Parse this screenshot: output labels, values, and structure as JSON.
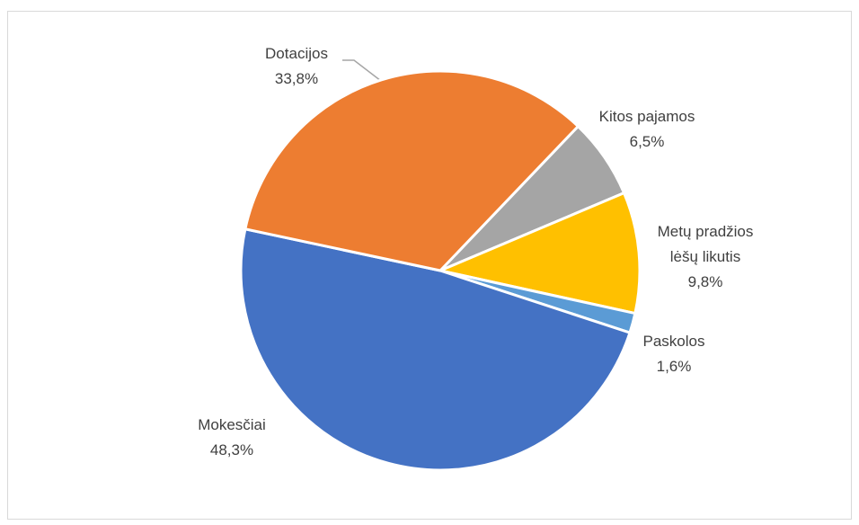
{
  "chart_data": {
    "type": "pie",
    "categories": [
      "Kitos pajamos",
      "Metų pradžios lėšų likutis",
      "Paskolos",
      "Mokesčiai",
      "Dotacijos"
    ],
    "values": [
      6.5,
      9.8,
      1.6,
      48.3,
      33.8
    ],
    "value_labels": [
      "6,5%",
      "9,8%",
      "1,6%",
      "48,3%",
      "33,8%"
    ],
    "colors": [
      "#a5a5a5",
      "#ffc000",
      "#5b9bd5",
      "#4472c4",
      "#ed7d31"
    ]
  }
}
